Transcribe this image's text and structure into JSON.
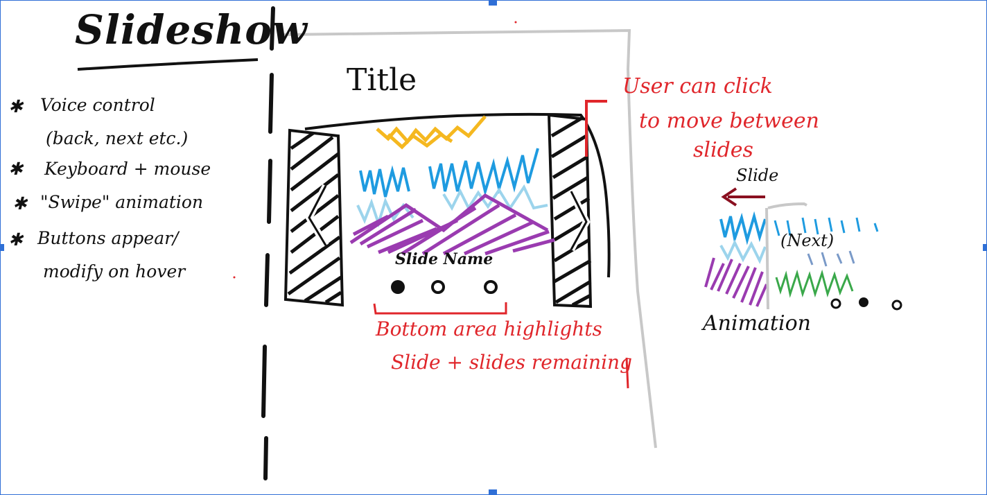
{
  "heading": "Slideshow",
  "features": [
    {
      "bullet": "✱",
      "lines": [
        "Voice control",
        "(back, next etc.)"
      ]
    },
    {
      "bullet": "✱",
      "lines": [
        "Keyboard + mouse"
      ]
    },
    {
      "bullet": "✱",
      "lines": [
        "\"Swipe\" animation"
      ]
    },
    {
      "bullet": "✱",
      "lines": [
        "Buttons appear/",
        "modify on hover"
      ]
    }
  ],
  "slide": {
    "title": "Title",
    "slide_name": "Slide Name",
    "dots_active_index": 0,
    "dots_count": 3
  },
  "annotations": {
    "click_note": [
      "User can click",
      "to move between",
      "slides"
    ],
    "bottom_note": [
      "Bottom area highlights",
      "Slide + slides remaining"
    ]
  },
  "animation_demo": {
    "direction_label": "Slide",
    "next_label": "(Next)",
    "caption": "Animation",
    "dots_active_index": 1,
    "dots_count": 3
  },
  "colors": {
    "ink": "#111111",
    "annotation": "#e0262b",
    "sun": "#f5b820",
    "sky_dark": "#1e9be0",
    "sky_light": "#9cd4ec",
    "mountain": "#9a3bb0",
    "grass": "#3aa84a",
    "arrow": "#8a1020",
    "frame_gray": "#c8c8c8",
    "selection": "#2f6fd6"
  }
}
